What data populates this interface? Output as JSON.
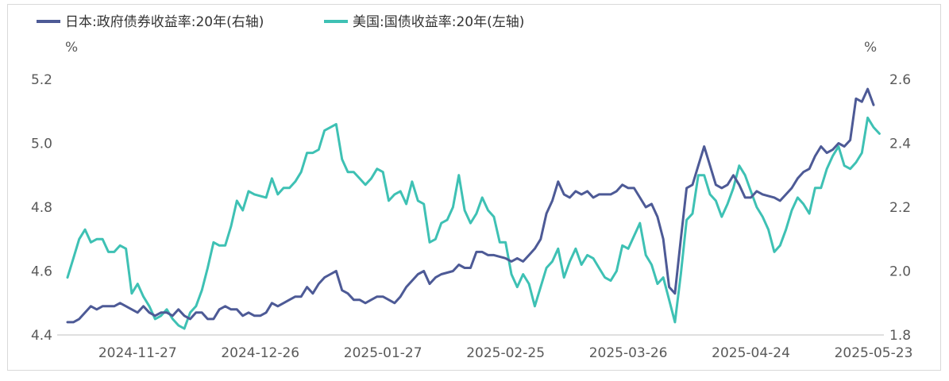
{
  "chart_data": {
    "type": "line",
    "title": "",
    "xlabel": "",
    "left_axis": {
      "unit": "%",
      "ylim": [
        4.4,
        5.2
      ],
      "ticks": [
        "5.2",
        "5.0",
        "4.8",
        "4.6",
        "4.4"
      ]
    },
    "right_axis": {
      "unit": "%",
      "ylim": [
        1.8,
        2.6
      ],
      "ticks": [
        "2.6",
        "2.4",
        "2.2",
        "2.0",
        "1.8"
      ]
    },
    "x_ticks": [
      {
        "label": "2024-11-27",
        "index": 12
      },
      {
        "label": "2024-12-26",
        "index": 33
      },
      {
        "label": "2025-01-27",
        "index": 54
      },
      {
        "label": "2025-02-25",
        "index": 75
      },
      {
        "label": "2025-03-26",
        "index": 96
      },
      {
        "label": "2025-04-24",
        "index": 117
      },
      {
        "label": "2025-05-23",
        "index": 138
      }
    ],
    "legend_position": "top-left",
    "series": [
      {
        "name": "日本:政府债券收益率:20年(右轴)",
        "axis": "right",
        "color": "#4d5a96",
        "values": [
          1.84,
          1.84,
          1.85,
          1.87,
          1.89,
          1.88,
          1.89,
          1.89,
          1.89,
          1.9,
          1.89,
          1.88,
          1.87,
          1.89,
          1.87,
          1.86,
          1.87,
          1.87,
          1.86,
          1.88,
          1.86,
          1.85,
          1.87,
          1.87,
          1.85,
          1.85,
          1.88,
          1.89,
          1.88,
          1.88,
          1.86,
          1.87,
          1.86,
          1.86,
          1.87,
          1.9,
          1.89,
          1.9,
          1.91,
          1.92,
          1.92,
          1.95,
          1.93,
          1.96,
          1.98,
          1.99,
          2.0,
          1.94,
          1.93,
          1.91,
          1.91,
          1.9,
          1.91,
          1.92,
          1.92,
          1.91,
          1.9,
          1.92,
          1.95,
          1.97,
          1.99,
          2.0,
          1.96,
          1.98,
          1.99,
          1.995,
          2.0,
          2.02,
          2.01,
          2.01,
          2.06,
          2.06,
          2.05,
          2.05,
          2.045,
          2.04,
          2.03,
          2.04,
          2.03,
          2.05,
          2.07,
          2.1,
          2.18,
          2.22,
          2.28,
          2.24,
          2.23,
          2.25,
          2.24,
          2.25,
          2.23,
          2.24,
          2.24,
          2.24,
          2.25,
          2.27,
          2.26,
          2.26,
          2.23,
          2.2,
          2.21,
          2.17,
          2.1,
          1.95,
          1.93,
          2.1,
          2.26,
          2.27,
          2.33,
          2.39,
          2.33,
          2.27,
          2.26,
          2.27,
          2.3,
          2.27,
          2.23,
          2.23,
          2.25,
          2.24,
          2.235,
          2.23,
          2.22,
          2.24,
          2.26,
          2.29,
          2.31,
          2.32,
          2.36,
          2.39,
          2.37,
          2.38,
          2.4,
          2.39,
          2.41,
          2.54,
          2.53,
          2.57,
          2.52
        ]
      },
      {
        "name": "美国:国债收益率:20年(左轴)",
        "axis": "left",
        "color": "#3ec1b4",
        "values": [
          4.58,
          4.64,
          4.7,
          4.73,
          4.69,
          4.7,
          4.7,
          4.66,
          4.66,
          4.68,
          4.67,
          4.53,
          4.56,
          4.52,
          4.49,
          4.45,
          4.46,
          4.48,
          4.45,
          4.43,
          4.42,
          4.47,
          4.49,
          4.54,
          4.61,
          4.69,
          4.68,
          4.68,
          4.74,
          4.82,
          4.79,
          4.85,
          4.84,
          4.835,
          4.83,
          4.89,
          4.84,
          4.86,
          4.86,
          4.88,
          4.91,
          4.97,
          4.97,
          4.98,
          5.04,
          5.05,
          5.06,
          4.95,
          4.91,
          4.91,
          4.89,
          4.87,
          4.89,
          4.92,
          4.91,
          4.82,
          4.84,
          4.85,
          4.81,
          4.88,
          4.82,
          4.81,
          4.69,
          4.7,
          4.75,
          4.76,
          4.8,
          4.9,
          4.79,
          4.75,
          4.78,
          4.83,
          4.79,
          4.77,
          4.69,
          4.69,
          4.59,
          4.55,
          4.59,
          4.56,
          4.49,
          4.55,
          4.61,
          4.63,
          4.67,
          4.58,
          4.63,
          4.67,
          4.62,
          4.65,
          4.64,
          4.61,
          4.58,
          4.57,
          4.6,
          4.68,
          4.67,
          4.71,
          4.75,
          4.65,
          4.62,
          4.56,
          4.58,
          4.51,
          4.44,
          4.59,
          4.76,
          4.78,
          4.9,
          4.9,
          4.84,
          4.82,
          4.77,
          4.81,
          4.86,
          4.93,
          4.9,
          4.85,
          4.8,
          4.77,
          4.73,
          4.66,
          4.68,
          4.73,
          4.79,
          4.83,
          4.81,
          4.78,
          4.86,
          4.86,
          4.92,
          4.96,
          4.99,
          4.93,
          4.92,
          4.94,
          4.97,
          5.08,
          5.05,
          5.03
        ]
      }
    ]
  }
}
